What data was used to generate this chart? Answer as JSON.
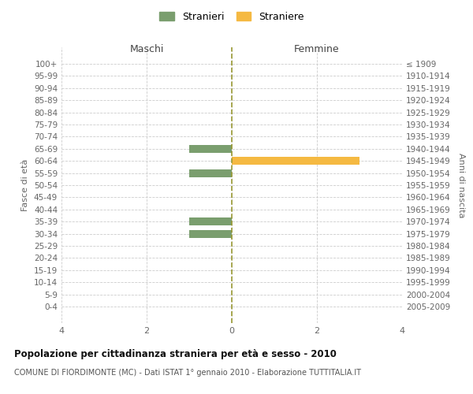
{
  "age_groups": [
    "100+",
    "95-99",
    "90-94",
    "85-89",
    "80-84",
    "75-79",
    "70-74",
    "65-69",
    "60-64",
    "55-59",
    "50-54",
    "45-49",
    "40-44",
    "35-39",
    "30-34",
    "25-29",
    "20-24",
    "15-19",
    "10-14",
    "5-9",
    "0-4"
  ],
  "birth_years": [
    "≤ 1909",
    "1910-1914",
    "1915-1919",
    "1920-1924",
    "1925-1929",
    "1930-1934",
    "1935-1939",
    "1940-1944",
    "1945-1949",
    "1950-1954",
    "1955-1959",
    "1960-1964",
    "1965-1969",
    "1970-1974",
    "1975-1979",
    "1980-1984",
    "1985-1989",
    "1990-1994",
    "1995-1999",
    "2000-2004",
    "2005-2009"
  ],
  "males": [
    0,
    0,
    0,
    0,
    0,
    0,
    0,
    1,
    0,
    1,
    0,
    0,
    0,
    1,
    1,
    0,
    0,
    0,
    0,
    0,
    0
  ],
  "females": [
    0,
    0,
    0,
    0,
    0,
    0,
    0,
    0,
    3,
    0,
    0,
    0,
    0,
    0,
    0,
    0,
    0,
    0,
    0,
    0,
    0
  ],
  "male_color": "#7a9e6e",
  "female_color": "#f5b942",
  "title": "Popolazione per cittadinanza straniera per età e sesso - 2010",
  "subtitle": "COMUNE DI FIORDIMONTE (MC) - Dati ISTAT 1° gennaio 2010 - Elaborazione TUTTITALIA.IT",
  "ylabel_left": "Fasce di età",
  "ylabel_right": "Anni di nascita",
  "xlabel_left": "Maschi",
  "xlabel_right": "Femmine",
  "legend_male": "Stranieri",
  "legend_female": "Straniere",
  "xlim": 4,
  "background_color": "#ffffff",
  "grid_color": "#cccccc",
  "axis_text_color": "#666666",
  "dashed_line_color": "#999933"
}
